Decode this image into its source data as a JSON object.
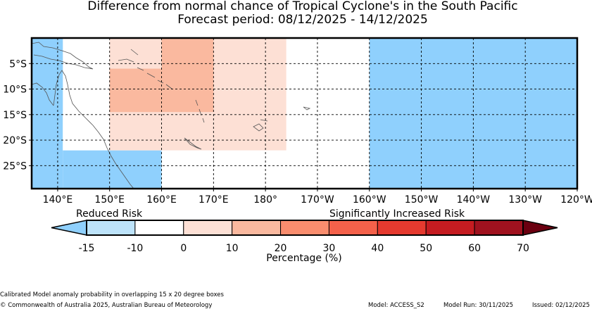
{
  "title": "Difference from normal chance of Tropical Cyclone's in the South Pacific",
  "subtitle": "Forecast period: 08/12/2025 - 14/12/2025",
  "map": {
    "lon_range": [
      135,
      240
    ],
    "lat_range": [
      -29.5,
      0
    ],
    "lon_ticks": [
      {
        "v": 140,
        "label": "140°E"
      },
      {
        "v": 150,
        "label": "150°E"
      },
      {
        "v": 160,
        "label": "160°E"
      },
      {
        "v": 170,
        "label": "170°E"
      },
      {
        "v": 180,
        "label": "180°"
      },
      {
        "v": 190,
        "label": "170°W"
      },
      {
        "v": 200,
        "label": "160°W"
      },
      {
        "v": 210,
        "label": "150°W"
      },
      {
        "v": 220,
        "label": "140°W"
      },
      {
        "v": 230,
        "label": "130°W"
      },
      {
        "v": 240,
        "label": "120°W"
      }
    ],
    "lat_ticks": [
      {
        "v": -5,
        "label": "5°S"
      },
      {
        "v": -10,
        "label": "10°S"
      },
      {
        "v": -15,
        "label": "15°S"
      },
      {
        "v": -20,
        "label": "20°S"
      },
      {
        "v": -25,
        "label": "25°S"
      }
    ],
    "cells": [
      {
        "lon": [
          135,
          141
        ],
        "lat": [
          -29.5,
          0
        ],
        "category": -15
      },
      {
        "lon": [
          141,
          150
        ],
        "lat": [
          -29.5,
          -22
        ],
        "category": -15
      },
      {
        "lon": [
          150,
          160
        ],
        "lat": [
          -29.5,
          -22
        ],
        "category": -15
      },
      {
        "lon": [
          141,
          150
        ],
        "lat": [
          -22,
          -14.5
        ],
        "category": -10
      },
      {
        "lon": [
          150,
          160
        ],
        "lat": [
          -22,
          -14.5
        ],
        "category": -10
      },
      {
        "lon": [
          150,
          180
        ],
        "lat": [
          -22,
          0
        ],
        "category": 0
      },
      {
        "lon": [
          160,
          170
        ],
        "lat": [
          -14.5,
          0
        ],
        "category": 10
      },
      {
        "lon": [
          150,
          160
        ],
        "lat": [
          -14.5,
          -6
        ],
        "category": 10
      },
      {
        "lon": [
          180,
          184
        ],
        "lat": [
          -22,
          0
        ],
        "category": 0
      },
      {
        "lon": [
          190,
          200
        ],
        "lat": [
          -29.5,
          0
        ],
        "category": -10
      },
      {
        "lon": [
          200,
          240
        ],
        "lat": [
          -29.5,
          0
        ],
        "category": -15
      }
    ]
  },
  "colorbar": {
    "left_label": "Reduced Risk",
    "right_label": "Significantly Increased Risk",
    "ticks": [
      "-15",
      "-10",
      "0",
      "10",
      "20",
      "30",
      "40",
      "50",
      "60",
      "70"
    ],
    "segments": [
      {
        "from": -15,
        "to": -10,
        "color": "#bde3fa"
      },
      {
        "from": -10,
        "to": 0,
        "color": "#ffffff"
      },
      {
        "from": 0,
        "to": 10,
        "color": "#fde0d5"
      },
      {
        "from": 10,
        "to": 20,
        "color": "#fab99f"
      },
      {
        "from": 20,
        "to": 30,
        "color": "#f98d6e"
      },
      {
        "from": 30,
        "to": 40,
        "color": "#f4614a"
      },
      {
        "from": 40,
        "to": 50,
        "color": "#e53a2f"
      },
      {
        "from": 50,
        "to": 60,
        "color": "#c51c21"
      },
      {
        "from": 60,
        "to": 70,
        "color": "#a0121f"
      }
    ],
    "under_color": "#8fd0fd",
    "over_color": "#6b0010",
    "xlabel": "Percentage (%)"
  },
  "colors": {
    "strong_reduced": "#8fd0fd",
    "reduced": "#bde3fa",
    "neutral": "#ffffff",
    "slight_increase": "#fde0d5",
    "moderate_increase": "#fab99f",
    "coast": "#555555"
  },
  "footer": {
    "note": "Calibrated Model anomaly probability in overlapping 15 x 20 degree boxes",
    "copyright": "© Commonwealth of Australia 2025, Australian Bureau of Meteorology",
    "model": "Model: ACCESS_S2",
    "model_run": "Model Run: 30/11/2025",
    "issued": "Issued: 02/12/2025"
  }
}
